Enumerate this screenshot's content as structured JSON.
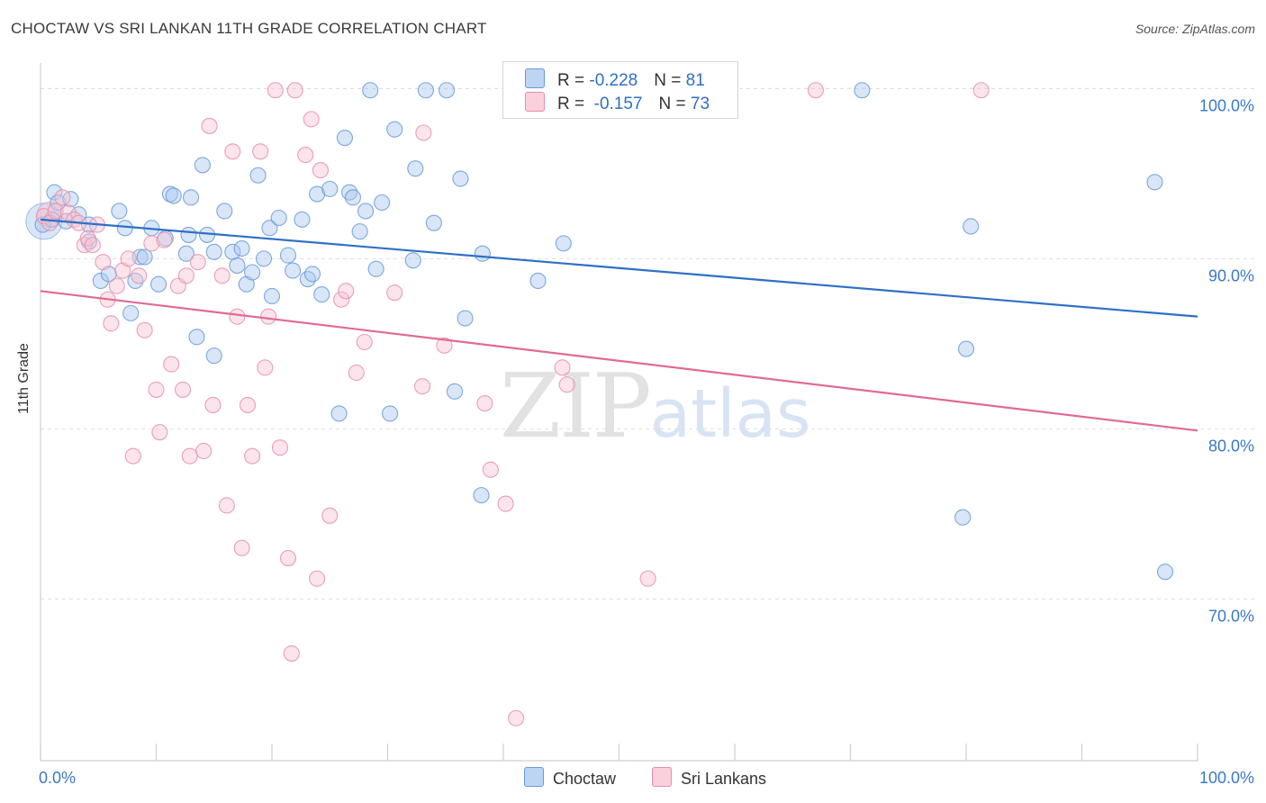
{
  "title": "CHOCTAW VS SRI LANKAN 11TH GRADE CORRELATION CHART",
  "source": "Source: ZipAtlas.com",
  "watermark": {
    "zip": "ZIP",
    "atlas": "atlas"
  },
  "legend": {
    "rows": [
      {
        "r_label": "R = ",
        "r_value": "-0.228",
        "n_label": "N = ",
        "n_value": "81",
        "color": "#a9c8ef"
      },
      {
        "r_label": "R = ",
        "r_value": " -0.157",
        "n_label": "N = ",
        "n_value": "73",
        "color": "#f6b9cc"
      }
    ]
  },
  "bottom_legend": {
    "choctaw": "Choctaw",
    "srilankans": "Sri Lankans"
  },
  "colors": {
    "blue_stroke": "#6a9ad8",
    "blue_fill": "#a9c8ef",
    "pink_stroke": "#e58fab",
    "pink_fill": "#f6c3d2",
    "blue_line": "#2f6fc6",
    "pink_line": "#e06a95",
    "axis_label": "#3a78c9"
  },
  "chart_data": {
    "type": "scatter",
    "title": "CHOCTAW VS SRI LANKAN 11TH GRADE CORRELATION CHART",
    "xlabel": "",
    "ylabel": "11th Grade",
    "xlim": [
      0,
      100
    ],
    "ylim": [
      60.5,
      101.5
    ],
    "x_tick_labels": [
      "0.0%",
      "100.0%"
    ],
    "y_ticks": [
      70,
      80,
      90,
      100
    ],
    "y_tick_labels": [
      "70.0%",
      "80.0%",
      "90.0%",
      "100.0%"
    ],
    "grid": true,
    "series": [
      {
        "name": "Choctaw",
        "r": -0.228,
        "n": 81,
        "trend": {
          "x": [
            0,
            100
          ],
          "y": [
            92.3,
            86.6
          ]
        },
        "points": [
          [
            0.2,
            92.0
          ],
          [
            1.0,
            92.3
          ],
          [
            1.2,
            93.9
          ],
          [
            1.5,
            93.3
          ],
          [
            2.2,
            92.2
          ],
          [
            2.6,
            93.5
          ],
          [
            3.3,
            92.6
          ],
          [
            4.2,
            91.0
          ],
          [
            4.2,
            92.0
          ],
          [
            5.2,
            88.7
          ],
          [
            5.9,
            89.1
          ],
          [
            6.8,
            92.8
          ],
          [
            7.3,
            91.8
          ],
          [
            7.8,
            86.8
          ],
          [
            8.2,
            88.7
          ],
          [
            8.6,
            90.1
          ],
          [
            9.0,
            90.1
          ],
          [
            9.6,
            91.8
          ],
          [
            10.2,
            88.5
          ],
          [
            10.8,
            91.2
          ],
          [
            11.2,
            93.8
          ],
          [
            11.5,
            93.7
          ],
          [
            12.6,
            90.3
          ],
          [
            12.8,
            91.4
          ],
          [
            13.0,
            93.6
          ],
          [
            13.5,
            85.4
          ],
          [
            14.0,
            95.5
          ],
          [
            14.4,
            91.4
          ],
          [
            15.0,
            90.4
          ],
          [
            15.0,
            84.3
          ],
          [
            15.9,
            92.8
          ],
          [
            16.6,
            90.4
          ],
          [
            17.0,
            89.6
          ],
          [
            17.4,
            90.6
          ],
          [
            17.8,
            88.5
          ],
          [
            18.3,
            89.2
          ],
          [
            18.8,
            94.9
          ],
          [
            19.3,
            90.0
          ],
          [
            19.8,
            91.8
          ],
          [
            20.0,
            87.8
          ],
          [
            20.6,
            92.4
          ],
          [
            21.4,
            90.2
          ],
          [
            21.8,
            89.3
          ],
          [
            22.6,
            92.3
          ],
          [
            23.1,
            88.8
          ],
          [
            23.5,
            89.1
          ],
          [
            23.9,
            93.8
          ],
          [
            24.3,
            87.9
          ],
          [
            25.0,
            94.1
          ],
          [
            25.8,
            80.9
          ],
          [
            26.3,
            97.1
          ],
          [
            26.7,
            93.9
          ],
          [
            27.0,
            93.6
          ],
          [
            27.6,
            91.6
          ],
          [
            28.1,
            92.8
          ],
          [
            28.5,
            99.9
          ],
          [
            29.0,
            89.4
          ],
          [
            29.5,
            93.3
          ],
          [
            30.2,
            80.9
          ],
          [
            30.6,
            97.6
          ],
          [
            32.2,
            89.9
          ],
          [
            32.4,
            95.3
          ],
          [
            33.3,
            99.9
          ],
          [
            34.0,
            92.1
          ],
          [
            35.1,
            99.9
          ],
          [
            35.8,
            82.2
          ],
          [
            36.3,
            94.7
          ],
          [
            36.7,
            86.5
          ],
          [
            38.1,
            76.1
          ],
          [
            38.2,
            90.3
          ],
          [
            43.0,
            88.7
          ],
          [
            45.2,
            90.9
          ],
          [
            71.0,
            99.9
          ],
          [
            79.7,
            74.8
          ],
          [
            80.0,
            84.7
          ],
          [
            80.4,
            91.9
          ],
          [
            96.3,
            94.5
          ],
          [
            97.2,
            71.6
          ]
        ]
      },
      {
        "name": "Sri Lankans",
        "r": -0.157,
        "n": 73,
        "trend": {
          "x": [
            0,
            100
          ],
          "y": [
            88.1,
            79.9
          ]
        },
        "points": [
          [
            0.3,
            92.5
          ],
          [
            0.8,
            92.1
          ],
          [
            1.3,
            92.8
          ],
          [
            1.9,
            93.6
          ],
          [
            2.4,
            92.7
          ],
          [
            2.9,
            92.3
          ],
          [
            3.3,
            92.1
          ],
          [
            3.8,
            90.8
          ],
          [
            4.1,
            91.2
          ],
          [
            4.5,
            90.8
          ],
          [
            4.9,
            92.0
          ],
          [
            5.4,
            89.8
          ],
          [
            5.8,
            87.6
          ],
          [
            6.1,
            86.2
          ],
          [
            6.6,
            88.4
          ],
          [
            7.1,
            89.3
          ],
          [
            7.6,
            90.0
          ],
          [
            8.0,
            78.4
          ],
          [
            8.5,
            89.0
          ],
          [
            9.0,
            85.8
          ],
          [
            9.6,
            90.9
          ],
          [
            10.0,
            82.3
          ],
          [
            10.3,
            79.8
          ],
          [
            10.7,
            91.1
          ],
          [
            11.3,
            83.8
          ],
          [
            11.9,
            88.4
          ],
          [
            12.3,
            82.3
          ],
          [
            12.6,
            89.0
          ],
          [
            12.9,
            78.4
          ],
          [
            13.6,
            89.8
          ],
          [
            14.1,
            78.7
          ],
          [
            14.6,
            97.8
          ],
          [
            14.9,
            81.4
          ],
          [
            15.7,
            89.0
          ],
          [
            16.1,
            75.5
          ],
          [
            16.6,
            96.3
          ],
          [
            17.0,
            86.6
          ],
          [
            17.4,
            73.0
          ],
          [
            17.9,
            81.4
          ],
          [
            18.3,
            78.4
          ],
          [
            19.0,
            96.3
          ],
          [
            19.4,
            83.6
          ],
          [
            19.7,
            86.6
          ],
          [
            20.3,
            99.9
          ],
          [
            20.7,
            78.9
          ],
          [
            21.4,
            72.4
          ],
          [
            21.7,
            66.8
          ],
          [
            22.0,
            99.9
          ],
          [
            22.9,
            96.1
          ],
          [
            23.4,
            98.2
          ],
          [
            23.9,
            71.2
          ],
          [
            24.2,
            95.2
          ],
          [
            25.0,
            74.9
          ],
          [
            26.0,
            87.6
          ],
          [
            26.4,
            88.1
          ],
          [
            27.3,
            83.3
          ],
          [
            28.0,
            85.1
          ],
          [
            30.6,
            88.0
          ],
          [
            33.0,
            82.5
          ],
          [
            33.1,
            97.4
          ],
          [
            34.9,
            84.9
          ],
          [
            38.4,
            81.5
          ],
          [
            38.9,
            77.6
          ],
          [
            40.2,
            75.6
          ],
          [
            41.1,
            63.0
          ],
          [
            45.1,
            83.6
          ],
          [
            45.5,
            82.6
          ],
          [
            52.5,
            71.2
          ],
          [
            67.0,
            99.9
          ],
          [
            81.3,
            99.9
          ]
        ]
      }
    ]
  }
}
